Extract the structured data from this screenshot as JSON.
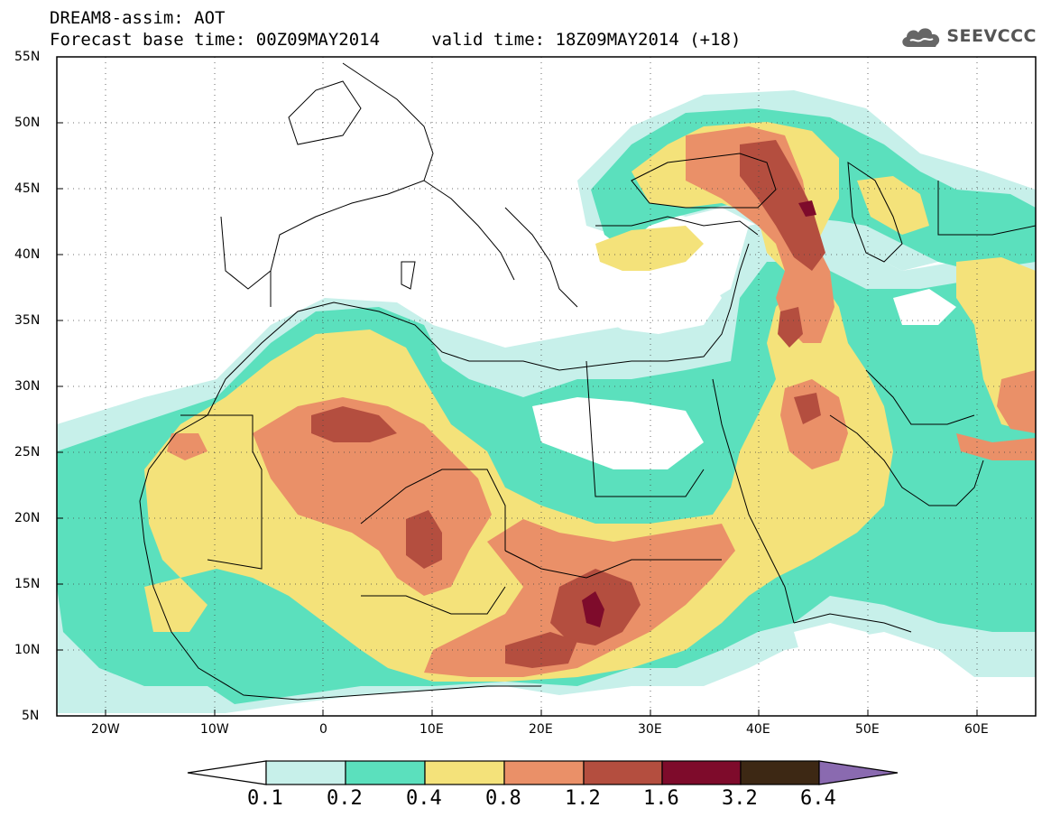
{
  "header": {
    "title_line1": "DREAM8-assim: AOT",
    "title_line2": "Forecast base time: 00Z09MAY2014     valid time: 18Z09MAY2014 (+18)",
    "logo_text": "SEEVCCC"
  },
  "map": {
    "lat_labels": [
      "55N",
      "50N",
      "45N",
      "40N",
      "35N",
      "30N",
      "25N",
      "20N",
      "15N",
      "10N",
      "5N"
    ],
    "lon_labels": [
      "20W",
      "10W",
      "0",
      "10E",
      "20E",
      "30E",
      "40E",
      "50E",
      "60E"
    ],
    "lat_range": [
      5,
      55
    ],
    "lon_range": [
      -25,
      65
    ],
    "grid": "dotted"
  },
  "colorbar": {
    "labels": [
      "0.1",
      "0.2",
      "0.4",
      "0.8",
      "1.2",
      "1.6",
      "3.2",
      "6.4"
    ],
    "colors": [
      "#ffffff",
      "#c7f0ea",
      "#5be0bd",
      "#f4e27a",
      "#ea9068",
      "#b44e3f",
      "#7e0b2b",
      "#3d2814",
      "#8a6ab0"
    ],
    "colors_meaning": "under-0.1, 0.1-0.2, 0.2-0.4, 0.4-0.8, 0.8-1.2, 1.2-1.6, 1.6-3.2, 3.2-6.4, over-6.4"
  }
}
